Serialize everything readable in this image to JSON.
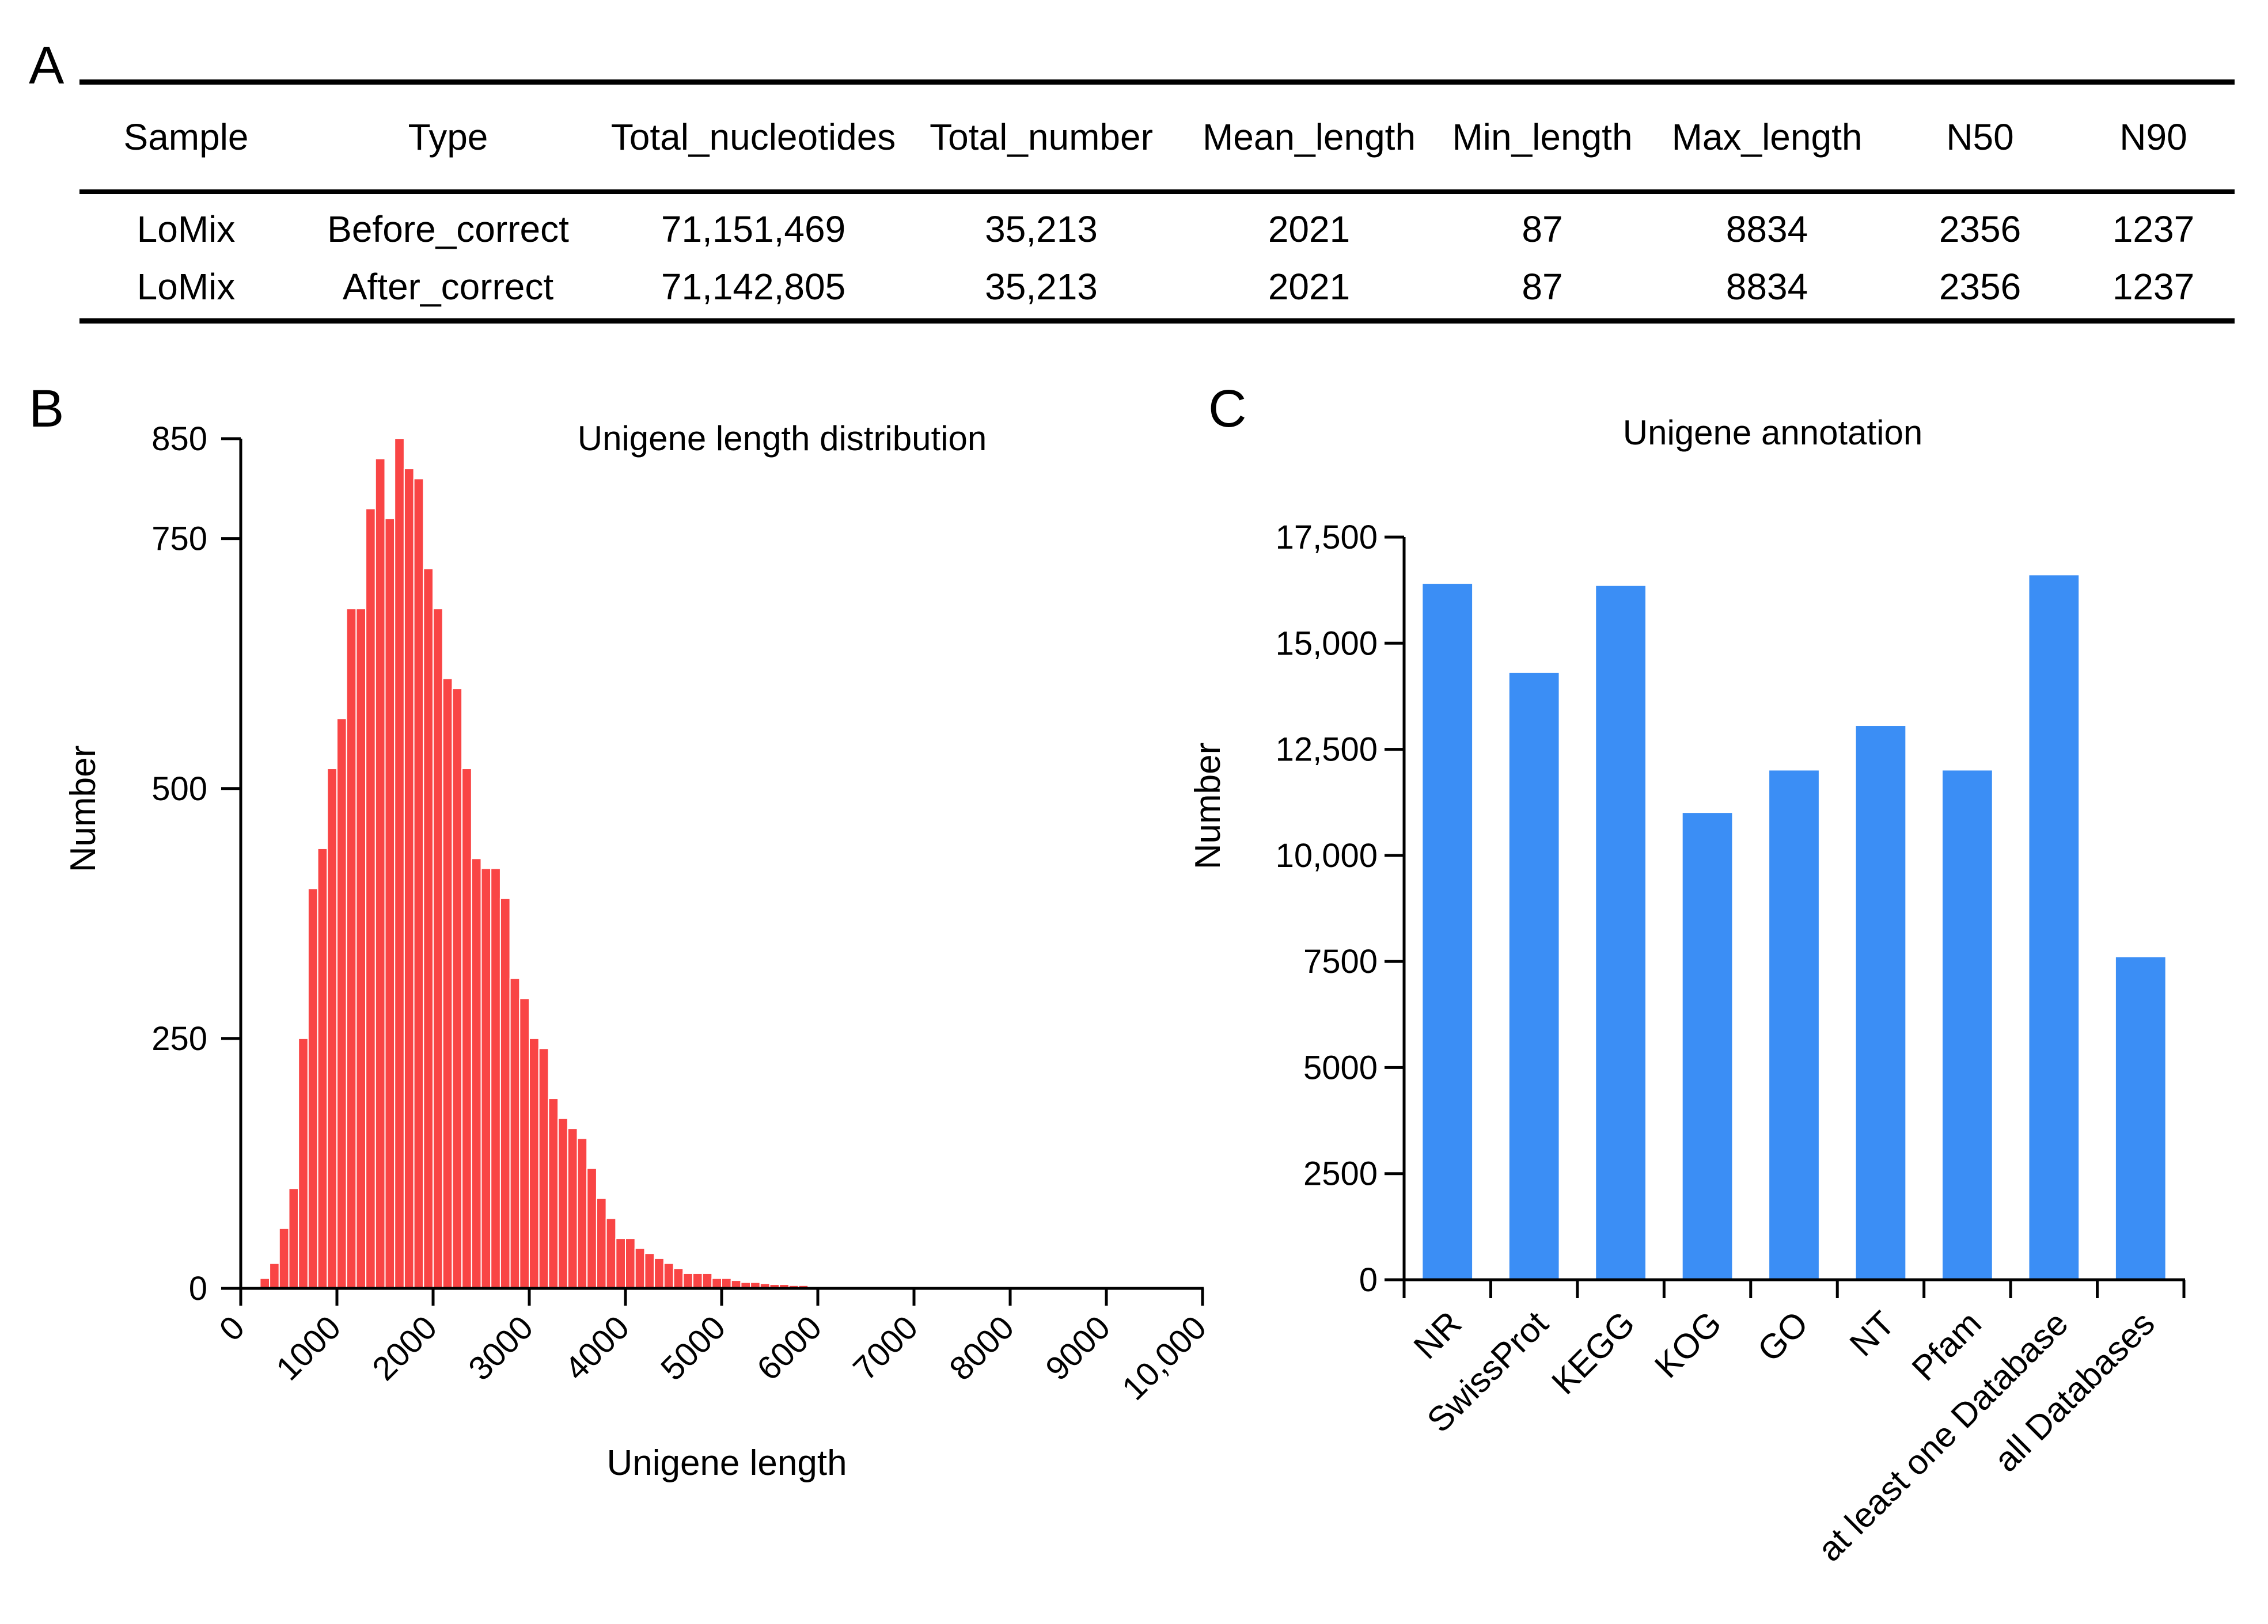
{
  "panels": {
    "a": "A",
    "b": "B",
    "c": "C"
  },
  "table": {
    "headers": [
      "Sample",
      "Type",
      "Total_nucleotides",
      "Total_number",
      "Mean_length",
      "Min_length",
      "Max_length",
      "N50",
      "N90"
    ],
    "rows": [
      [
        "LoMix",
        "Before_correct",
        "71,151,469",
        "35,213",
        "2021",
        "87",
        "8834",
        "2356",
        "1237"
      ],
      [
        "LoMix",
        "After_correct",
        "71,142,805",
        "35,213",
        "2021",
        "87",
        "8834",
        "2356",
        "1237"
      ]
    ]
  },
  "chart_data": [
    {
      "type": "bar",
      "subtype": "histogram",
      "title": "Unigene length distribution",
      "xlabel": "Unigene length",
      "ylabel": "Number",
      "bin_width": 100,
      "bin_start": 100,
      "xlim": [
        0,
        10000
      ],
      "ylim": [
        0,
        850
      ],
      "xticks": [
        0,
        1000,
        2000,
        3000,
        4000,
        5000,
        6000,
        7000,
        8000,
        9000,
        10000
      ],
      "xtick_labels": [
        "0",
        "1000",
        "2000",
        "3000",
        "4000",
        "5000",
        "6000",
        "7000",
        "8000",
        "9000",
        "10,000"
      ],
      "yticks": [
        0,
        250,
        500,
        750,
        850
      ],
      "ytick_labels": [
        "0",
        "250",
        "500",
        "750",
        "850"
      ],
      "values": [
        2,
        10,
        25,
        60,
        100,
        250,
        400,
        440,
        520,
        570,
        680,
        680,
        780,
        830,
        770,
        850,
        820,
        810,
        720,
        680,
        610,
        600,
        520,
        430,
        420,
        420,
        390,
        310,
        290,
        250,
        240,
        190,
        170,
        160,
        150,
        120,
        90,
        70,
        50,
        50,
        40,
        35,
        30,
        25,
        20,
        15,
        15,
        15,
        10,
        10,
        8,
        6,
        6,
        5,
        4,
        4,
        3,
        3,
        2,
        1,
        1,
        1,
        1,
        1,
        1,
        0.5,
        0.5,
        0.5,
        0.5,
        0.5
      ],
      "color": "#f94545"
    },
    {
      "type": "bar",
      "title": "Unigene annotation",
      "xlabel": "",
      "ylabel": "Number",
      "categories": [
        "NR",
        "SwissProt",
        "KEGG",
        "KOG",
        "GO",
        "NT",
        "Pfam",
        "at least one Database",
        "all Databases"
      ],
      "values": [
        16400,
        14300,
        16350,
        11000,
        12000,
        13050,
        12000,
        16600,
        7600
      ],
      "ylim": [
        0,
        17500
      ],
      "yticks": [
        0,
        2500,
        5000,
        7500,
        10000,
        12500,
        15000,
        17500
      ],
      "ytick_labels": [
        "0",
        "2500",
        "5000",
        "7500",
        "10,000",
        "12,500",
        "15,000",
        "17,500"
      ],
      "color": "#3b8ef5"
    }
  ]
}
